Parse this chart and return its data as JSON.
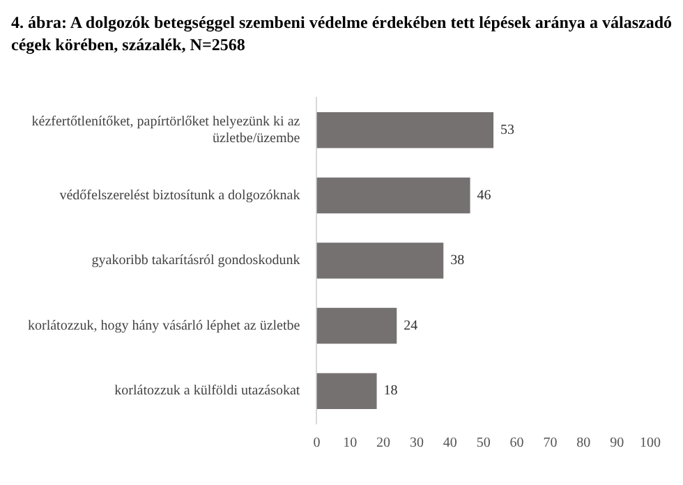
{
  "chart_data": {
    "type": "bar",
    "orientation": "horizontal",
    "title": "4. ábra: A dolgozók betegséggel szembeni védelme érdekében tett lépések aránya a válaszadó cégek körében, százalék, N=2568",
    "categories": [
      "kézfertőtlenítőket, papírtörlőket helyezünk ki az üzletbe/üzembe",
      "védőfelszerelést biztosítunk a dolgozóknak",
      "gyakoribb takarításról gondoskodunk",
      "korlátozzuk, hogy hány vásárló léphet az üzletbe",
      "korlátozzuk a külföldi utazásokat"
    ],
    "values": [
      53,
      46,
      38,
      24,
      18
    ],
    "color": "#767171",
    "xlim": [
      0,
      100
    ],
    "xticks": [
      0,
      10,
      20,
      30,
      40,
      50,
      60,
      70,
      80,
      90,
      100
    ],
    "grid": false,
    "data_labels": true,
    "legend": false
  }
}
